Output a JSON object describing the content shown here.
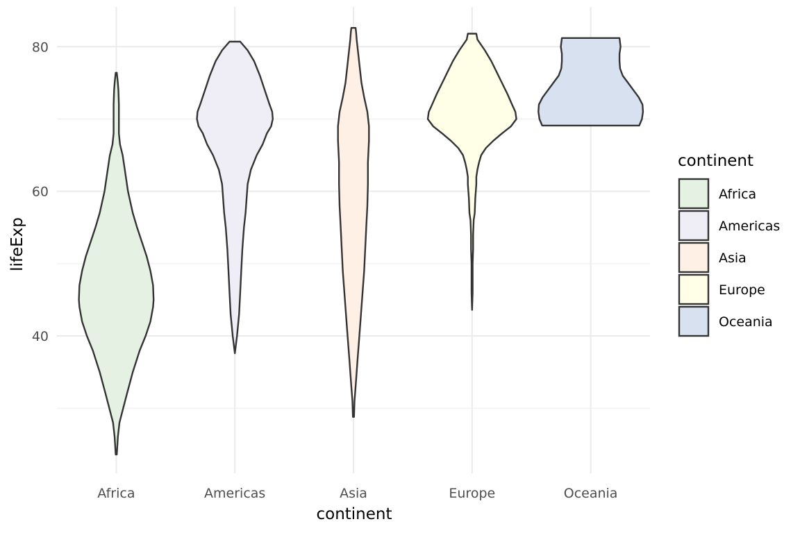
{
  "chart_data": {
    "type": "violin",
    "xlabel": "continent",
    "ylabel": "lifeExp",
    "ylim": [
      21.0,
      85.5
    ],
    "yticks": [
      40,
      60,
      80
    ],
    "y_minor_ticks": [
      30,
      50,
      70
    ],
    "grid": true,
    "legend": {
      "title": "continent",
      "placement": "right"
    },
    "categories": [
      "Africa",
      "Americas",
      "Asia",
      "Europe",
      "Oceania"
    ],
    "colors": {
      "Africa": "#e5f2e3",
      "Americas": "#efedf5",
      "Asia": "#fef0e4",
      "Europe": "#ffffe8",
      "Oceania": "#d7e1ef"
    },
    "outline_color": "#333333",
    "series": [
      {
        "name": "Africa",
        "min": 23.6,
        "max": 76.4,
        "profile": [
          [
            23.6,
            0.01
          ],
          [
            26,
            0.03
          ],
          [
            28,
            0.06
          ],
          [
            30,
            0.13
          ],
          [
            32,
            0.2
          ],
          [
            35,
            0.31
          ],
          [
            38,
            0.44
          ],
          [
            40,
            0.55
          ],
          [
            42,
            0.64
          ],
          [
            44,
            0.69
          ],
          [
            45,
            0.7
          ],
          [
            47,
            0.69
          ],
          [
            49,
            0.64
          ],
          [
            51,
            0.57
          ],
          [
            53,
            0.48
          ],
          [
            55,
            0.39
          ],
          [
            57,
            0.31
          ],
          [
            60,
            0.22
          ],
          [
            63,
            0.16
          ],
          [
            65,
            0.12
          ],
          [
            66.5,
            0.07
          ],
          [
            68,
            0.05
          ],
          [
            70,
            0.05
          ],
          [
            72,
            0.05
          ],
          [
            74,
            0.04
          ],
          [
            75,
            0.03
          ],
          [
            76.4,
            0.01
          ]
        ]
      },
      {
        "name": "Americas",
        "min": 37.6,
        "max": 80.7,
        "profile": [
          [
            37.6,
            0.0
          ],
          [
            40,
            0.04
          ],
          [
            43,
            0.08
          ],
          [
            46,
            0.1
          ],
          [
            49,
            0.12
          ],
          [
            52,
            0.14
          ],
          [
            55,
            0.17
          ],
          [
            57,
            0.2
          ],
          [
            59,
            0.22
          ],
          [
            61,
            0.24
          ],
          [
            63,
            0.3
          ],
          [
            65,
            0.41
          ],
          [
            66.5,
            0.52
          ],
          [
            68,
            0.6
          ],
          [
            69,
            0.68
          ],
          [
            70,
            0.71
          ],
          [
            71,
            0.7
          ],
          [
            72,
            0.65
          ],
          [
            74,
            0.56
          ],
          [
            76,
            0.47
          ],
          [
            78,
            0.36
          ],
          [
            79.5,
            0.24
          ],
          [
            80.7,
            0.1
          ]
        ]
      },
      {
        "name": "Asia",
        "min": 28.8,
        "max": 82.6,
        "profile": [
          [
            28.8,
            0.01
          ],
          [
            31,
            0.02
          ],
          [
            33,
            0.04
          ],
          [
            35,
            0.06
          ],
          [
            37,
            0.08
          ],
          [
            40,
            0.11
          ],
          [
            43,
            0.14
          ],
          [
            46,
            0.17
          ],
          [
            49,
            0.2
          ],
          [
            52,
            0.22
          ],
          [
            55,
            0.24
          ],
          [
            58,
            0.26
          ],
          [
            61,
            0.27
          ],
          [
            64,
            0.27
          ],
          [
            67,
            0.29
          ],
          [
            69,
            0.29
          ],
          [
            71,
            0.26
          ],
          [
            73,
            0.2
          ],
          [
            75,
            0.15
          ],
          [
            77,
            0.12
          ],
          [
            79,
            0.09
          ],
          [
            81,
            0.06
          ],
          [
            82,
            0.05
          ],
          [
            82.6,
            0.04
          ]
        ]
      },
      {
        "name": "Europe",
        "min": 43.6,
        "max": 81.8,
        "profile": [
          [
            43.6,
            0.0
          ],
          [
            46,
            0.01
          ],
          [
            48,
            0.01
          ],
          [
            50,
            0.01
          ],
          [
            52,
            0.02
          ],
          [
            54,
            0.02
          ],
          [
            56,
            0.03
          ],
          [
            57,
            0.05
          ],
          [
            59,
            0.06
          ],
          [
            61,
            0.08
          ],
          [
            62,
            0.08
          ],
          [
            63,
            0.1
          ],
          [
            64,
            0.13
          ],
          [
            65,
            0.17
          ],
          [
            66,
            0.26
          ],
          [
            67,
            0.4
          ],
          [
            68,
            0.56
          ],
          [
            69,
            0.73
          ],
          [
            70,
            0.83
          ],
          [
            71,
            0.81
          ],
          [
            72,
            0.75
          ],
          [
            73.5,
            0.66
          ],
          [
            75,
            0.56
          ],
          [
            76.5,
            0.46
          ],
          [
            78,
            0.36
          ],
          [
            79.5,
            0.24
          ],
          [
            81,
            0.1
          ],
          [
            81.8,
            0.08
          ]
        ]
      },
      {
        "name": "Oceania",
        "min": 69.1,
        "max": 81.2,
        "profile": [
          [
            69.1,
            0.91
          ],
          [
            70,
            0.96
          ],
          [
            71,
            0.98
          ],
          [
            72,
            0.97
          ],
          [
            73,
            0.9
          ],
          [
            74,
            0.8
          ],
          [
            75,
            0.7
          ],
          [
            76,
            0.6
          ],
          [
            77,
            0.55
          ],
          [
            78,
            0.54
          ],
          [
            79,
            0.54
          ],
          [
            80,
            0.56
          ],
          [
            81.2,
            0.54
          ]
        ]
      }
    ]
  }
}
